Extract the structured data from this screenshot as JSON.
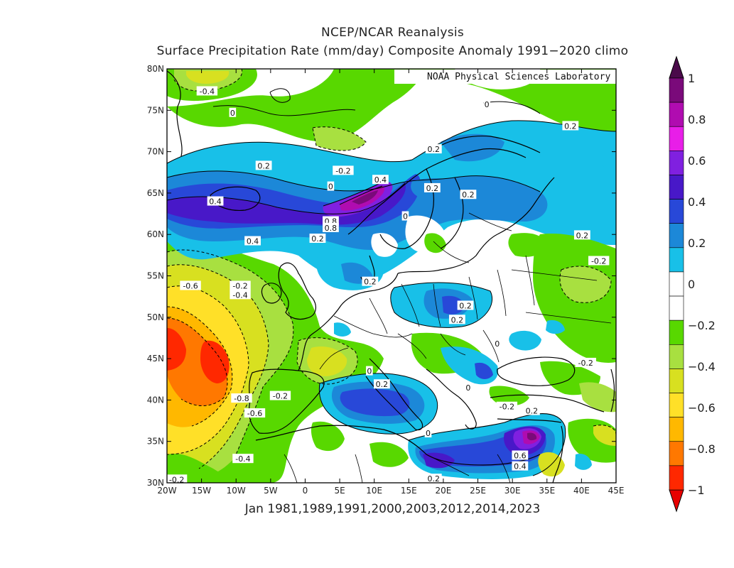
{
  "title": "NCEP/NCAR Reanalysis",
  "subtitle": "Surface Precipitation Rate (mm/day) Composite Anomaly 1991−2020 climo",
  "credit": "NOAA Physical Sciences Laboratory",
  "caption": "Jan 1981,1989,1991,2000,2003,2012,2014,2023",
  "map": {
    "lon_range": [
      -20,
      45
    ],
    "lat_range": [
      30,
      80
    ],
    "x_ticks": [
      "20W",
      "15W",
      "10W",
      "5W",
      "0",
      "5E",
      "10E",
      "15E",
      "20E",
      "25E",
      "30E",
      "35E",
      "40E",
      "45E"
    ],
    "y_ticks": [
      "30N",
      "35N",
      "40N",
      "45N",
      "50N",
      "55N",
      "60N",
      "65N",
      "70N",
      "75N",
      "80N"
    ]
  },
  "colorbar": {
    "ticks": [
      "1",
      "0.8",
      "0.6",
      "0.4",
      "0.2",
      "0",
      "−0.2",
      "−0.4",
      "−0.6",
      "−0.8",
      "−1"
    ],
    "colors": [
      "#7a0a7a",
      "#b00cb0",
      "#e81ee8",
      "#8020e0",
      "#4818c8",
      "#2848d8",
      "#1c88d8",
      "#18c0e8",
      "#ffffff",
      "#ffffff",
      "#58d800",
      "#a8e040",
      "#d8e020",
      "#ffe028",
      "#ffb800",
      "#ff7800",
      "#ff2800"
    ],
    "arrow_top": "#4a0a4a",
    "arrow_bottom": "#e80000"
  },
  "contour_labels": [
    {
      "text": "-0.4",
      "lon": -14.2,
      "lat": 77.3
    },
    {
      "text": "0",
      "lon": -10.5,
      "lat": 74.7
    },
    {
      "text": "0",
      "lon": 26.3,
      "lat": 75.7
    },
    {
      "text": "0.2",
      "lon": -6,
      "lat": 68.3
    },
    {
      "text": "-0.2",
      "lon": 5.5,
      "lat": 67.7
    },
    {
      "text": "0",
      "lon": 3.7,
      "lat": 65.8
    },
    {
      "text": "0.4",
      "lon": -13,
      "lat": 64.0
    },
    {
      "text": "0.4",
      "lon": 10.9,
      "lat": 66.6
    },
    {
      "text": "0.2",
      "lon": 38.4,
      "lat": 73.1
    },
    {
      "text": "0.2",
      "lon": 18.6,
      "lat": 70.3
    },
    {
      "text": "0.2",
      "lon": 18.4,
      "lat": 65.6
    },
    {
      "text": "0.2",
      "lon": 23.6,
      "lat": 64.8
    },
    {
      "text": "0",
      "lon": 14.5,
      "lat": 62.2
    },
    {
      "text": "0.8",
      "lon": 3.7,
      "lat": 61.6
    },
    {
      "text": "0.8",
      "lon": 3.7,
      "lat": 60.8
    },
    {
      "text": "0.2",
      "lon": 1.8,
      "lat": 59.5
    },
    {
      "text": "0.4",
      "lon": -7.6,
      "lat": 59.2
    },
    {
      "text": "0.2",
      "lon": 40.1,
      "lat": 59.9
    },
    {
      "text": "-0.2",
      "lon": 42.5,
      "lat": 56.8
    },
    {
      "text": "-0.6",
      "lon": -16.6,
      "lat": 53.8
    },
    {
      "text": "-0.2",
      "lon": -9.4,
      "lat": 53.8
    },
    {
      "text": "-0.4",
      "lon": -9.4,
      "lat": 52.7
    },
    {
      "text": "0.2",
      "lon": 9.4,
      "lat": 54.3
    },
    {
      "text": "0.2",
      "lon": 22.0,
      "lat": 49.7
    },
    {
      "text": "0.2",
      "lon": 23.2,
      "lat": 51.4
    },
    {
      "text": "0",
      "lon": 27.8,
      "lat": 46.8
    },
    {
      "text": "-0.2",
      "lon": 40.6,
      "lat": 44.5
    },
    {
      "text": "0",
      "lon": 9.3,
      "lat": 43.5
    },
    {
      "text": "0.2",
      "lon": 11.1,
      "lat": 41.9
    },
    {
      "text": "0",
      "lon": 23.6,
      "lat": 41.5
    },
    {
      "text": "-0.8",
      "lon": -9.2,
      "lat": 40.2
    },
    {
      "text": "-0.2",
      "lon": -3.6,
      "lat": 40.5
    },
    {
      "text": "-0.2",
      "lon": 29.2,
      "lat": 39.2
    },
    {
      "text": "0.2",
      "lon": 32.8,
      "lat": 38.7
    },
    {
      "text": "-0.6",
      "lon": -7.3,
      "lat": 38.4
    },
    {
      "text": "0",
      "lon": 17.8,
      "lat": 36.0
    },
    {
      "text": "-0.4",
      "lon": -9.0,
      "lat": 32.9
    },
    {
      "text": "0.6",
      "lon": 31.1,
      "lat": 33.3
    },
    {
      "text": "0.4",
      "lon": 31.1,
      "lat": 32.0
    },
    {
      "text": "-0.2",
      "lon": -18.6,
      "lat": 30.4
    },
    {
      "text": "0.2",
      "lon": 18.6,
      "lat": 30.5
    }
  ]
}
